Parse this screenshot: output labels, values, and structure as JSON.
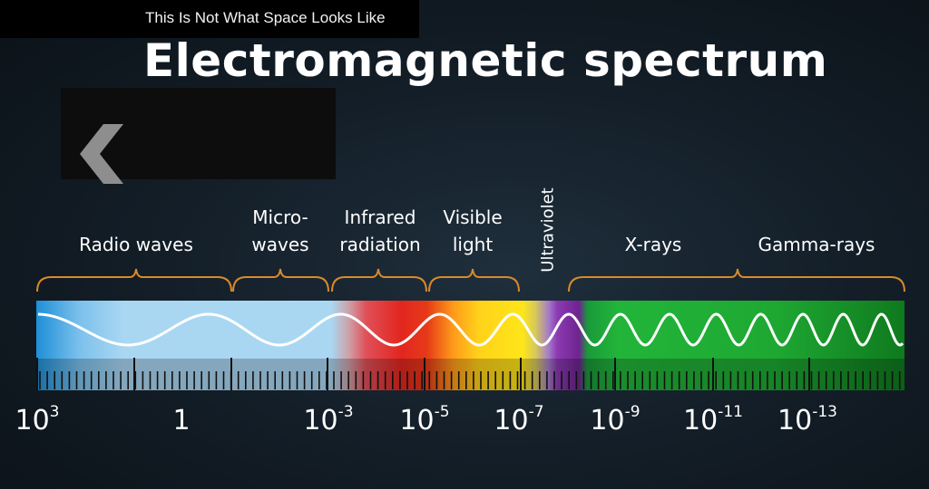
{
  "video": {
    "title": "This Is Not What Space Looks Like"
  },
  "diagram": {
    "title": "Electromagnetic spectrum",
    "bands": [
      {
        "id": "radio",
        "lines": [
          "Radio waves"
        ]
      },
      {
        "id": "microwaves",
        "lines": [
          "Micro-",
          "waves"
        ]
      },
      {
        "id": "infrared",
        "lines": [
          "Infrared",
          "radiation"
        ]
      },
      {
        "id": "visible",
        "lines": [
          "Visible",
          "light"
        ]
      },
      {
        "id": "ultraviolet",
        "lines": [
          "Ultraviolet"
        ]
      },
      {
        "id": "xrays",
        "lines": [
          "X-rays"
        ]
      },
      {
        "id": "gamma",
        "lines": [
          "Gamma-rays"
        ]
      }
    ],
    "wavelength_labels": [
      {
        "base": "10",
        "exp": "3"
      },
      {
        "base": "1",
        "exp": ""
      },
      {
        "base": "10",
        "exp": "-3"
      },
      {
        "base": "10",
        "exp": "-5"
      },
      {
        "base": "10",
        "exp": "-7"
      },
      {
        "base": "10",
        "exp": "-9"
      },
      {
        "base": "10",
        "exp": "-11"
      },
      {
        "base": "10",
        "exp": "-13"
      }
    ]
  },
  "controls": {
    "back_icon": "chevron-left-icon"
  },
  "colors": {
    "bracket": "#d98a2b",
    "radio": "#a9d7f2",
    "infrared": "#e2261f",
    "visible": "#ffe21a",
    "ultraviolet": "#7b2b9a",
    "xray_gamma": "#1fae35"
  }
}
